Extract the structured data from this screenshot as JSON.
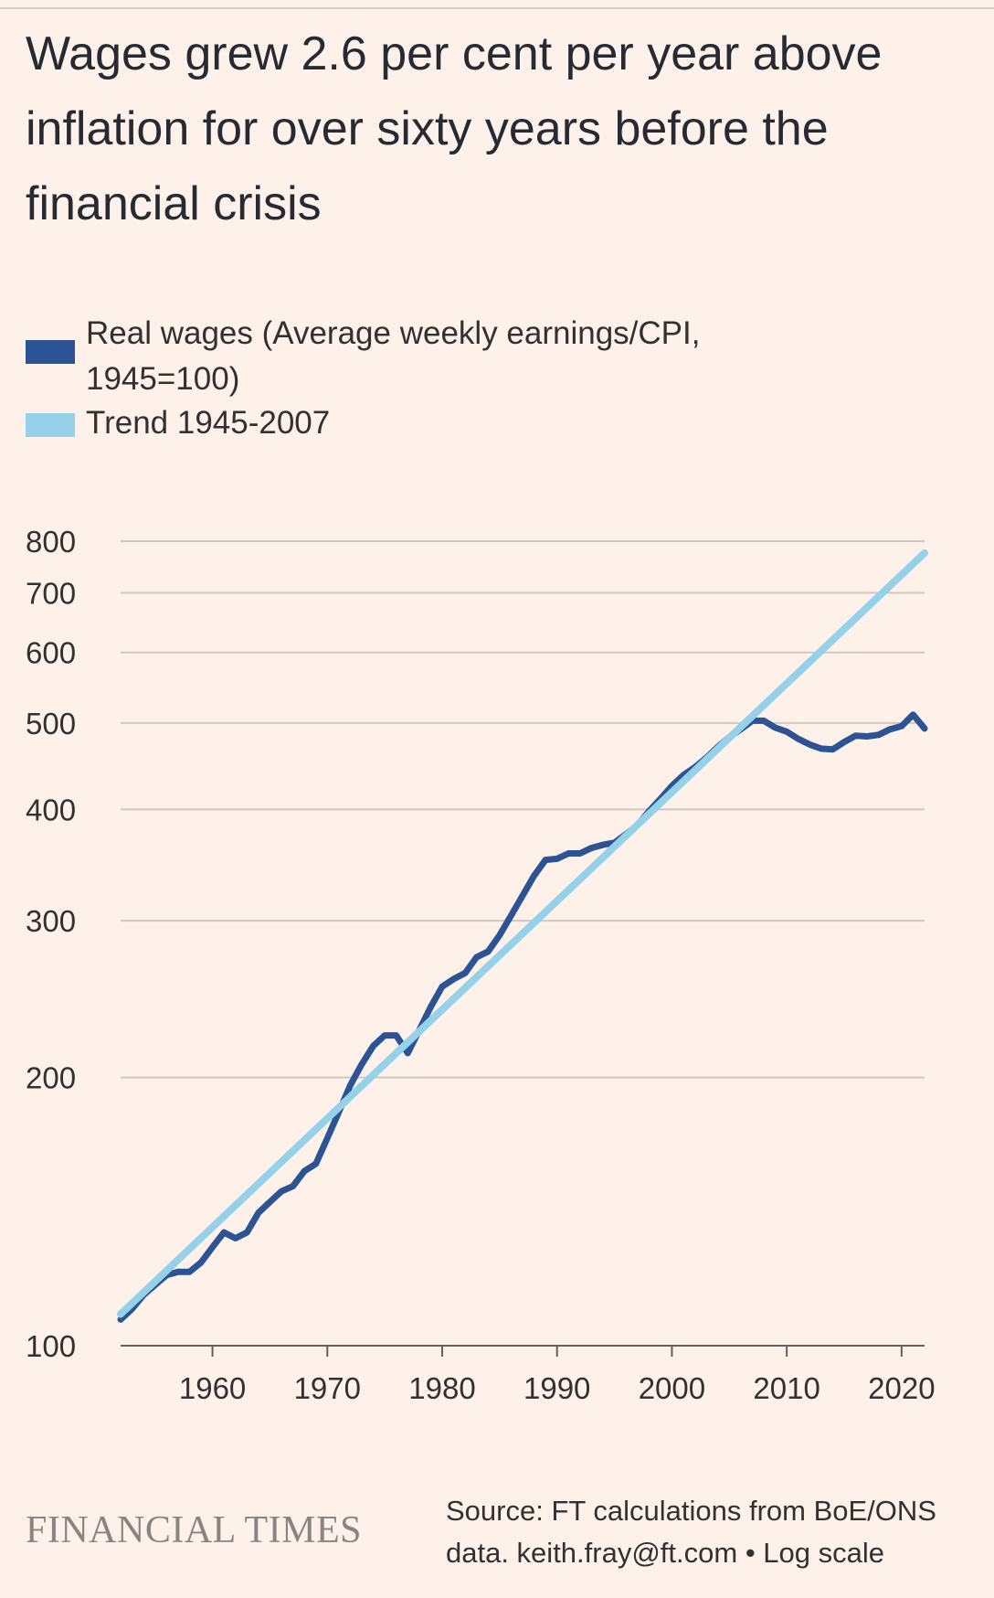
{
  "header": {
    "title": "Wages grew 2.6 per cent per year above inflation for over sixty years before the financial crisis"
  },
  "legend": {
    "items": [
      {
        "label": "Real wages (Average weekly earnings/CPI, 1945=100)",
        "color": "#2c5494"
      },
      {
        "label": "Trend 1945-2007",
        "color": "#96d1ea"
      }
    ]
  },
  "footer": {
    "brand": "FINANCIAL TIMES",
    "source": "Source: FT calculations from BoE/ONS data. keith.fray@ft.com • Log scale"
  },
  "chart_data": {
    "type": "line",
    "scale": "log",
    "xlim": [
      1952,
      2022
    ],
    "ylim": [
      100,
      800
    ],
    "x_ticks": [
      1960,
      1970,
      1980,
      1990,
      2000,
      2010,
      2020
    ],
    "y_ticks": [
      100,
      200,
      300,
      400,
      500,
      600,
      700,
      800
    ],
    "grid": true,
    "legend_position": "top-left",
    "series": [
      {
        "name": "Real wages (Average weekly earnings/CPI, 1945=100)",
        "color": "#2c5494",
        "points": [
          [
            1952,
            107
          ],
          [
            1953,
            110
          ],
          [
            1954,
            114
          ],
          [
            1955,
            117
          ],
          [
            1956,
            120
          ],
          [
            1957,
            121
          ],
          [
            1958,
            121
          ],
          [
            1959,
            124
          ],
          [
            1960,
            129
          ],
          [
            1961,
            134
          ],
          [
            1962,
            132
          ],
          [
            1963,
            134
          ],
          [
            1964,
            141
          ],
          [
            1965,
            145
          ],
          [
            1966,
            149
          ],
          [
            1967,
            151
          ],
          [
            1968,
            157
          ],
          [
            1969,
            160
          ],
          [
            1970,
            171
          ],
          [
            1971,
            183
          ],
          [
            1972,
            196
          ],
          [
            1973,
            207
          ],
          [
            1974,
            217
          ],
          [
            1975,
            223
          ],
          [
            1976,
            223
          ],
          [
            1977,
            213
          ],
          [
            1978,
            226
          ],
          [
            1979,
            240
          ],
          [
            1980,
            253
          ],
          [
            1981,
            258
          ],
          [
            1982,
            262
          ],
          [
            1983,
            273
          ],
          [
            1984,
            277
          ],
          [
            1985,
            289
          ],
          [
            1986,
            304
          ],
          [
            1987,
            320
          ],
          [
            1988,
            337
          ],
          [
            1989,
            351
          ],
          [
            1990,
            352
          ],
          [
            1991,
            357
          ],
          [
            1992,
            357
          ],
          [
            1993,
            362
          ],
          [
            1994,
            365
          ],
          [
            1995,
            367
          ],
          [
            1996,
            375
          ],
          [
            1997,
            384
          ],
          [
            1998,
            398
          ],
          [
            1999,
            411
          ],
          [
            2000,
            425
          ],
          [
            2001,
            437
          ],
          [
            2002,
            446
          ],
          [
            2003,
            457
          ],
          [
            2004,
            470
          ],
          [
            2005,
            482
          ],
          [
            2006,
            492
          ],
          [
            2007,
            503
          ],
          [
            2008,
            503
          ],
          [
            2009,
            494
          ],
          [
            2010,
            489
          ],
          [
            2011,
            480
          ],
          [
            2012,
            473
          ],
          [
            2013,
            468
          ],
          [
            2014,
            467
          ],
          [
            2015,
            476
          ],
          [
            2016,
            484
          ],
          [
            2017,
            483
          ],
          [
            2018,
            485
          ],
          [
            2019,
            492
          ],
          [
            2020,
            496
          ],
          [
            2021,
            511
          ],
          [
            2022,
            493
          ]
        ]
      },
      {
        "name": "Trend 1945-2007",
        "color": "#96d1ea",
        "points": [
          [
            1952,
            108.5
          ],
          [
            2022,
            776
          ]
        ]
      }
    ]
  }
}
